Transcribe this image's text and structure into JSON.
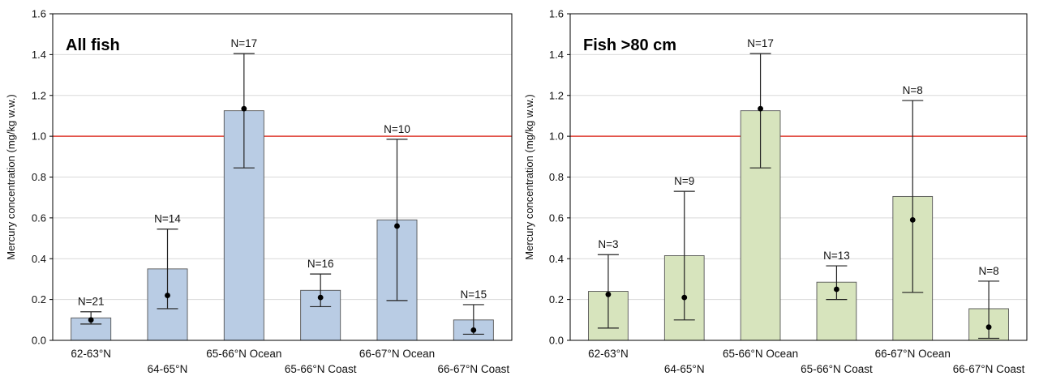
{
  "chart_data": [
    {
      "type": "bar",
      "title": "All fish",
      "ylabel": "Mercury concentration (mg/kg w.w.)",
      "ylim": [
        0,
        1.6
      ],
      "yticks": [
        "0.0",
        "0.2",
        "0.4",
        "0.6",
        "0.8",
        "1.0",
        "1.2",
        "1.4",
        "1.6"
      ],
      "reference_line": {
        "value": 1.0,
        "color": "#e03c31"
      },
      "bar_color": "#b9cce4",
      "categories": [
        "62-63°N",
        "64-65°N",
        "65-66°N Ocean",
        "65-66°N Coast",
        "66-67°N Ocean",
        "66-67°N Coast"
      ],
      "values": [
        0.11,
        0.35,
        1.125,
        0.245,
        0.59,
        0.1
      ],
      "points": [
        0.1,
        0.22,
        1.135,
        0.21,
        0.56,
        0.05
      ],
      "err_low": [
        0.08,
        0.155,
        0.845,
        0.165,
        0.195,
        0.03
      ],
      "err_high": [
        0.14,
        0.545,
        1.405,
        0.325,
        0.985,
        0.175
      ],
      "n_labels": [
        "N=21",
        "N=14",
        "N=17",
        "N=16",
        "N=10",
        "N=15"
      ],
      "grid": true
    },
    {
      "type": "bar",
      "title": "Fish >80 cm",
      "ylabel": "Mercury concentration (mg/kg w.w.)",
      "ylim": [
        0,
        1.6
      ],
      "yticks": [
        "0.0",
        "0.2",
        "0.4",
        "0.6",
        "0.8",
        "1.0",
        "1.2",
        "1.4",
        "1.6"
      ],
      "reference_line": {
        "value": 1.0,
        "color": "#e03c31"
      },
      "bar_color": "#d7e4bd",
      "categories": [
        "62-63°N",
        "64-65°N",
        "65-66°N Ocean",
        "65-66°N Coast",
        "66-67°N Ocean",
        "66-67°N Coast"
      ],
      "values": [
        0.24,
        0.415,
        1.125,
        0.285,
        0.705,
        0.155
      ],
      "points": [
        0.225,
        0.21,
        1.135,
        0.25,
        0.59,
        0.065
      ],
      "err_low": [
        0.06,
        0.1,
        0.845,
        0.2,
        0.235,
        0.01
      ],
      "err_high": [
        0.42,
        0.73,
        1.405,
        0.365,
        1.175,
        0.29
      ],
      "n_labels": [
        "N=3",
        "N=9",
        "N=17",
        "N=13",
        "N=8",
        "N=8"
      ],
      "grid": true
    }
  ]
}
